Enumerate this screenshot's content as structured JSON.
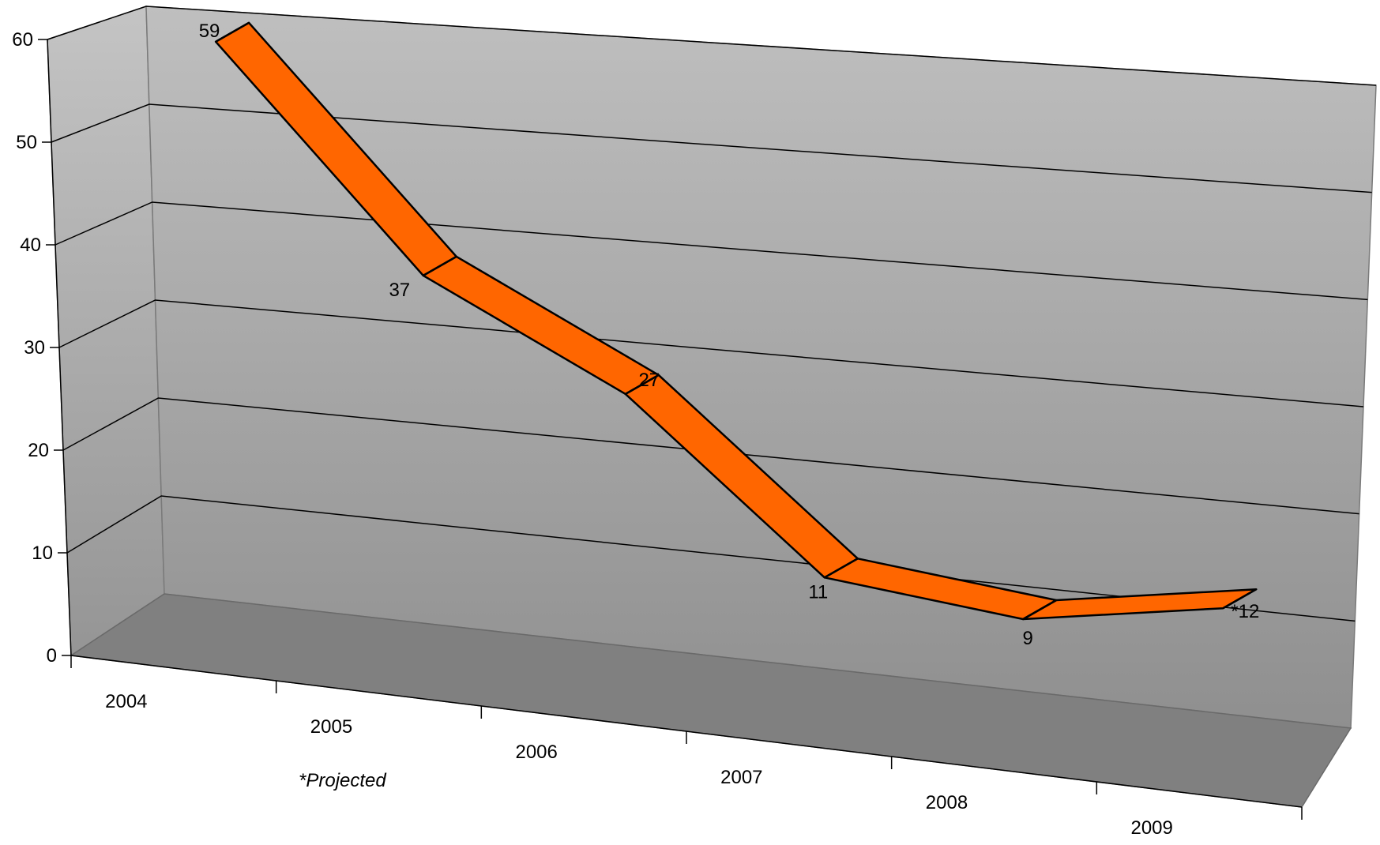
{
  "chart_data": {
    "type": "line",
    "style": "3d-ribbon",
    "categories": [
      "2004",
      "2005",
      "2006",
      "2007",
      "2008",
      "2009"
    ],
    "series": [
      {
        "values": [
          59,
          37,
          27,
          11,
          9,
          12
        ],
        "data_labels": [
          "59",
          "37",
          "27",
          "11",
          "9",
          "*12"
        ],
        "color": "#ff6600"
      }
    ],
    "title": "",
    "xlabel": "",
    "ylabel": "",
    "ylim": [
      0,
      60
    ],
    "yticks": [
      "0",
      "10",
      "20",
      "30",
      "40",
      "50",
      "60"
    ],
    "grid": true,
    "legend": "none",
    "note": "*Projected",
    "colors": {
      "back_wall_top": "#bfbfbf",
      "back_wall_bottom": "#8f8f8f",
      "floor": "#808080",
      "ribbon": "#ff6600",
      "outline": "#000000"
    }
  }
}
